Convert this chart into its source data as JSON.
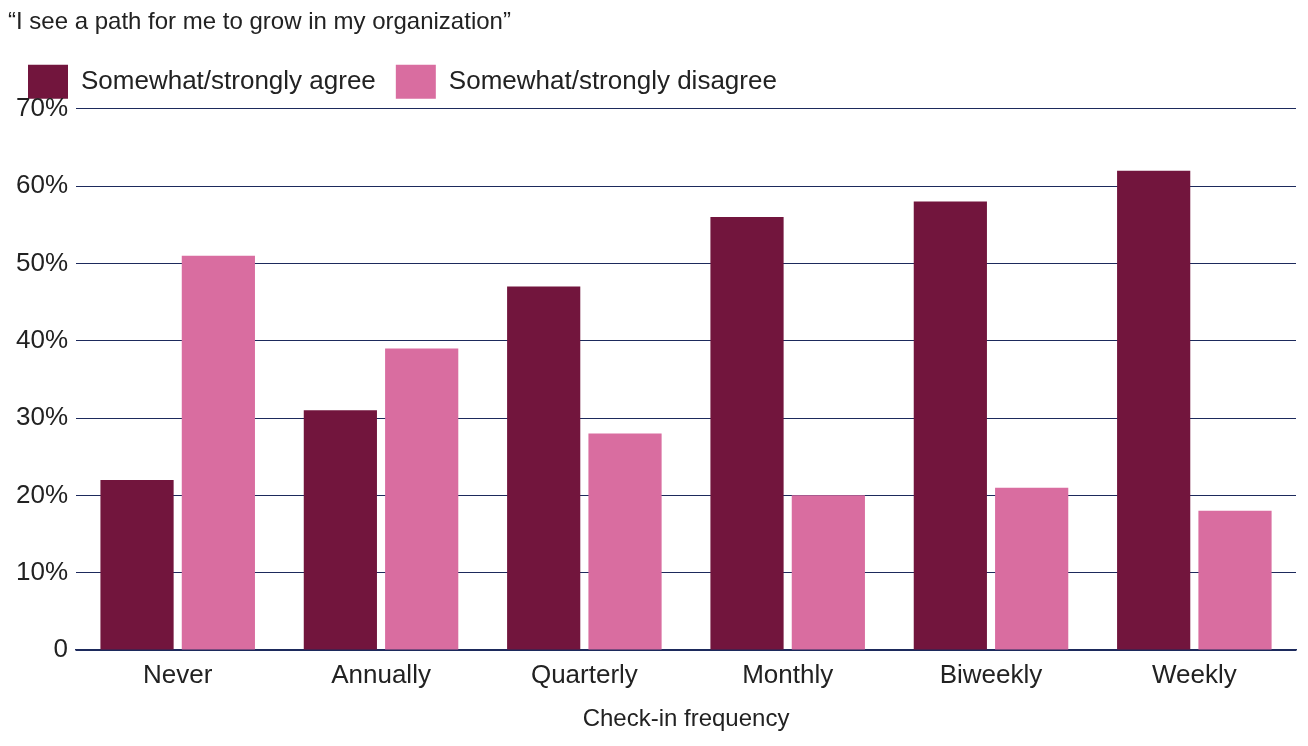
{
  "chart_data": {
    "type": "bar",
    "title": "“I see a path for me to grow in my organization”",
    "xlabel": "Check-in frequency",
    "categories": [
      "Never",
      "Annually",
      "Quarterly",
      "Monthly",
      "Biweekly",
      "Weekly"
    ],
    "series": [
      {
        "name": "Somewhat/strongly agree",
        "color": "#72153d",
        "values": [
          22,
          31,
          47,
          56,
          58,
          62
        ]
      },
      {
        "name": "Somewhat/strongly disagree",
        "color": "#d96da0",
        "values": [
          51,
          39,
          28,
          20,
          21,
          18
        ]
      }
    ],
    "ylim": [
      0,
      70
    ],
    "yticks": [
      {
        "value": 0,
        "label": "0"
      },
      {
        "value": 10,
        "label": "10%"
      },
      {
        "value": 20,
        "label": "20%"
      },
      {
        "value": 30,
        "label": "30%"
      },
      {
        "value": 40,
        "label": "40%"
      },
      {
        "value": 50,
        "label": "50%"
      },
      {
        "value": 60,
        "label": "60%"
      },
      {
        "value": 70,
        "label": "70%"
      }
    ],
    "grid": "y",
    "legend": "top left"
  }
}
